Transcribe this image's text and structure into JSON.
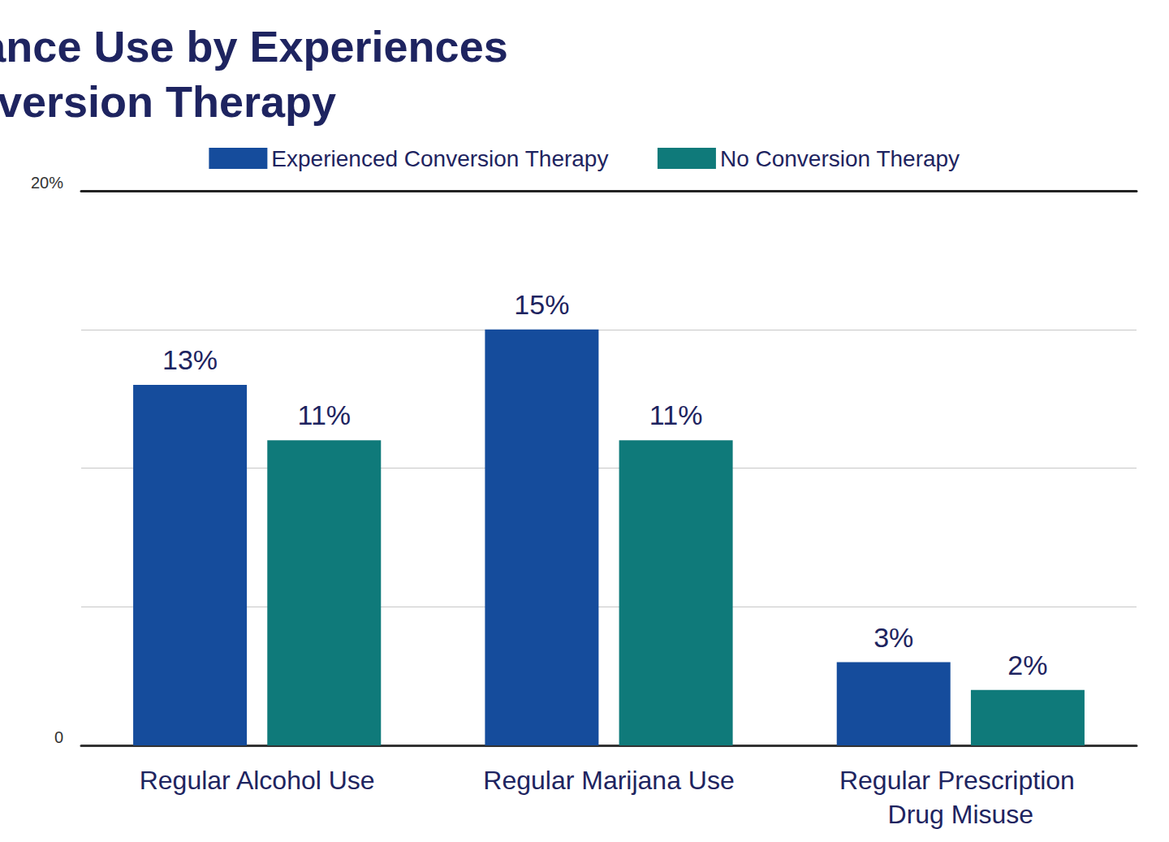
{
  "chart_data": {
    "type": "bar",
    "title": "Rates of Substance Use by Experiences of Conversion Therapy",
    "categories": [
      "Regular Alcohol Use",
      "Regular Marijana Use",
      "Regular Prescription Drug Misuse"
    ],
    "series": [
      {
        "name": "Experienced Conversion Therapy",
        "color": "#154c9c",
        "values": [
          13,
          15,
          3
        ],
        "value_labels": [
          "13%",
          "15%",
          "3%"
        ]
      },
      {
        "name": "No Conversion Therapy",
        "color": "#0f7a7a",
        "values": [
          11,
          11,
          2
        ],
        "value_labels": [
          "11%",
          "11%",
          "2%"
        ]
      }
    ],
    "ylim": [
      0,
      20
    ],
    "yticks": [
      0,
      {
        "value": 5,
        "label": null
      },
      {
        "value": 10,
        "label": null
      },
      {
        "value": 15,
        "label": null
      },
      {
        "value": 20,
        "label": "20%"
      }
    ],
    "grid": true,
    "legend": "top",
    "data_labels": true
  }
}
